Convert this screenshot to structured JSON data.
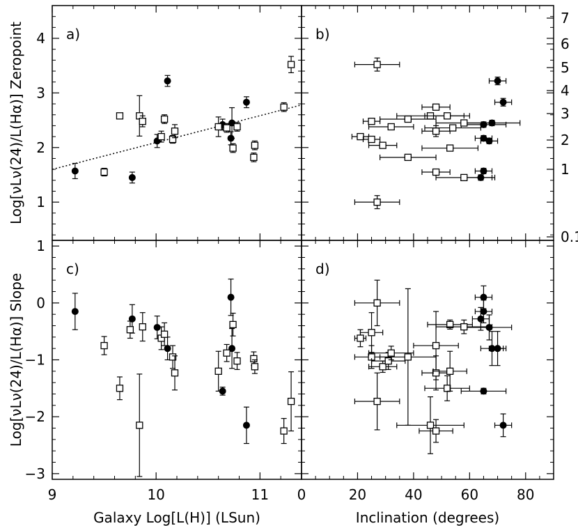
{
  "chart_data": [
    {
      "panel": "a",
      "panel_label": "a)",
      "type": "scatter",
      "ylabel": "Log[νLν(24)/L(Hα)] Zeropoint",
      "xlabel": "Galaxy Log[L(H)] (LSun)",
      "xlim": [
        9.0,
        11.4
      ],
      "ylim": [
        0.3,
        4.6
      ],
      "xticks": [
        "9",
        "10",
        "11"
      ],
      "yticks": [
        "1",
        "2",
        "3",
        "4"
      ],
      "fit_line": {
        "x": [
          9.0,
          11.4
        ],
        "y": [
          1.6,
          2.78
        ],
        "style": "dotted"
      },
      "series": [
        {
          "name": "filled",
          "marker": "filled-circle",
          "points": [
            {
              "x": 9.22,
              "y": 1.57,
              "yerr": 0.14
            },
            {
              "x": 9.77,
              "y": 1.45,
              "yerr": 0.1
            },
            {
              "x": 10.01,
              "y": 2.12,
              "yerr": 0.12
            },
            {
              "x": 10.11,
              "y": 3.22,
              "yerr": 0.1
            },
            {
              "x": 10.64,
              "y": 2.42,
              "yerr": 0.1
            },
            {
              "x": 10.72,
              "y": 2.17,
              "yerr": 0.12
            },
            {
              "x": 10.73,
              "y": 2.45,
              "yerr": 0.28
            },
            {
              "x": 10.87,
              "y": 2.83,
              "yerr": 0.1
            }
          ]
        },
        {
          "name": "open",
          "marker": "open-square",
          "points": [
            {
              "x": 9.5,
              "y": 1.55,
              "yerr": 0.07
            },
            {
              "x": 9.65,
              "y": 2.58,
              "yerr": 0.05
            },
            {
              "x": 9.84,
              "y": 2.58,
              "yerr": 0.37
            },
            {
              "x": 9.87,
              "y": 2.48,
              "yerr": 0.1
            },
            {
              "x": 10.05,
              "y": 2.2,
              "yerr": 0.1
            },
            {
              "x": 10.08,
              "y": 2.52,
              "yerr": 0.08
            },
            {
              "x": 10.16,
              "y": 2.15,
              "yerr": 0.07
            },
            {
              "x": 10.18,
              "y": 2.3,
              "yerr": 0.12
            },
            {
              "x": 10.6,
              "y": 2.38,
              "yerr": 0.18
            },
            {
              "x": 10.68,
              "y": 2.36,
              "yerr": 0.08
            },
            {
              "x": 10.74,
              "y": 1.99,
              "yerr": 0.08
            },
            {
              "x": 10.78,
              "y": 2.38,
              "yerr": 0.08
            },
            {
              "x": 10.94,
              "y": 1.82,
              "yerr": 0.08
            },
            {
              "x": 10.95,
              "y": 2.04,
              "yerr": 0.08
            },
            {
              "x": 11.23,
              "y": 2.74,
              "yerr": 0.08
            },
            {
              "x": 11.3,
              "y": 3.52,
              "yerr": 0.15
            }
          ]
        }
      ]
    },
    {
      "panel": "b",
      "panel_label": "b)",
      "type": "scatter",
      "xlabel": "Inclination (degrees)",
      "xlim": [
        0,
        90
      ],
      "ylim": [
        0.3,
        4.6
      ],
      "xticks": [
        "0",
        "20",
        "40",
        "60",
        "80"
      ],
      "right_axis_ticks": [
        "7",
        "6",
        "5",
        "4",
        "3",
        "2",
        "1",
        "0.1"
      ],
      "series": [
        {
          "name": "filled",
          "marker": "filled-circle",
          "points": [
            {
              "x": 64,
              "y": 1.45,
              "xerr": 5,
              "yerr": 0.05
            },
            {
              "x": 65,
              "y": 1.57,
              "xerr": 3,
              "yerr": 0.05
            },
            {
              "x": 65,
              "y": 2.42,
              "xerr": 8,
              "yerr": 0.05
            },
            {
              "x": 65,
              "y": 2.17,
              "xerr": 3,
              "yerr": 0.05
            },
            {
              "x": 67,
              "y": 2.12,
              "xerr": 3,
              "yerr": 0.05
            },
            {
              "x": 68,
              "y": 2.45,
              "xerr": 10,
              "yerr": 0.05
            },
            {
              "x": 70,
              "y": 3.22,
              "xerr": 3,
              "yerr": 0.07
            },
            {
              "x": 72,
              "y": 2.83,
              "xerr": 3,
              "yerr": 0.07
            }
          ]
        },
        {
          "name": "open",
          "marker": "open-square",
          "points": [
            {
              "x": 21,
              "y": 2.2,
              "xerr": 3,
              "yerr": 0.05
            },
            {
              "x": 25,
              "y": 2.48,
              "xerr": 3,
              "yerr": 0.05
            },
            {
              "x": 25,
              "y": 2.15,
              "xerr": 3,
              "yerr": 0.05
            },
            {
              "x": 27,
              "y": 3.52,
              "xerr": 8,
              "yerr": 0.12
            },
            {
              "x": 27,
              "y": 1.0,
              "xerr": 8,
              "yerr": 0.12
            },
            {
              "x": 29,
              "y": 2.04,
              "xerr": 5,
              "yerr": 0.05
            },
            {
              "x": 32,
              "y": 2.38,
              "xerr": 8,
              "yerr": 0.05
            },
            {
              "x": 38,
              "y": 1.82,
              "xerr": 10,
              "yerr": 0.05
            },
            {
              "x": 38,
              "y": 2.52,
              "xerr": 10,
              "yerr": 0.05
            },
            {
              "x": 46,
              "y": 2.58,
              "xerr": 12,
              "yerr": 0.05
            },
            {
              "x": 48,
              "y": 2.74,
              "xerr": 5,
              "yerr": 0.05
            },
            {
              "x": 48,
              "y": 2.3,
              "xerr": 5,
              "yerr": 0.1
            },
            {
              "x": 48,
              "y": 1.55,
              "xerr": 5,
              "yerr": 0.05
            },
            {
              "x": 52,
              "y": 2.58,
              "xerr": 8,
              "yerr": 0.05
            },
            {
              "x": 53,
              "y": 1.99,
              "xerr": 10,
              "yerr": 0.05
            },
            {
              "x": 54,
              "y": 2.36,
              "xerr": 10,
              "yerr": 0.05
            },
            {
              "x": 58,
              "y": 2.45,
              "xerr": 10,
              "yerr": 0.05
            },
            {
              "x": 58,
              "y": 1.45,
              "xerr": 10,
              "yerr": 0.05
            }
          ]
        }
      ]
    },
    {
      "panel": "c",
      "panel_label": "c)",
      "type": "scatter",
      "ylabel": "Log[νLν(24)/L(Hα)] Slope",
      "xlabel": "Galaxy Log[L(H)] (LSun)",
      "xlim": [
        9.0,
        11.4
      ],
      "ylim": [
        -3.1,
        1.1
      ],
      "xticks": [
        "9",
        "10",
        "11"
      ],
      "yticks": [
        "1",
        "0",
        "−1",
        "−2",
        "−3"
      ],
      "series": [
        {
          "name": "filled",
          "marker": "filled-circle",
          "points": [
            {
              "x": 9.22,
              "y": -0.15,
              "yerr": 0.32
            },
            {
              "x": 9.77,
              "y": -0.28,
              "yerr": 0.25
            },
            {
              "x": 10.01,
              "y": -0.43,
              "yerr": 0.2
            },
            {
              "x": 10.11,
              "y": -0.8,
              "yerr": 0.2
            },
            {
              "x": 10.64,
              "y": -1.55,
              "yerr": 0.07
            },
            {
              "x": 10.72,
              "y": 0.1,
              "yerr": 0.32
            },
            {
              "x": 10.73,
              "y": -0.8,
              "yerr": 0.35
            },
            {
              "x": 10.87,
              "y": -2.15,
              "yerr": 0.32
            }
          ]
        },
        {
          "name": "open",
          "marker": "open-square",
          "points": [
            {
              "x": 9.5,
              "y": -0.75,
              "yerr": 0.16
            },
            {
              "x": 9.65,
              "y": -1.5,
              "yerr": 0.2
            },
            {
              "x": 9.75,
              "y": -0.47,
              "yerr": 0.15
            },
            {
              "x": 9.84,
              "y": -2.15,
              "yerr": 0.9
            },
            {
              "x": 9.87,
              "y": -0.42,
              "yerr": 0.25
            },
            {
              "x": 10.05,
              "y": -0.62,
              "yerr": 0.2
            },
            {
              "x": 10.08,
              "y": -0.55,
              "yerr": 0.2
            },
            {
              "x": 10.16,
              "y": -0.95,
              "yerr": 0.2
            },
            {
              "x": 10.18,
              "y": -1.23,
              "yerr": 0.3
            },
            {
              "x": 10.6,
              "y": -1.2,
              "yerr": 0.35
            },
            {
              "x": 10.68,
              "y": -0.88,
              "yerr": 0.15
            },
            {
              "x": 10.74,
              "y": -0.38,
              "yerr": 0.2
            },
            {
              "x": 10.78,
              "y": -1.02,
              "yerr": 0.15
            },
            {
              "x": 10.94,
              "y": -0.98,
              "yerr": 0.12
            },
            {
              "x": 10.95,
              "y": -1.12,
              "yerr": 0.12
            },
            {
              "x": 11.23,
              "y": -2.25,
              "yerr": 0.22
            },
            {
              "x": 11.3,
              "y": -1.73,
              "yerr": 0.52
            }
          ]
        }
      ]
    },
    {
      "panel": "d",
      "panel_label": "d)",
      "type": "scatter",
      "xlabel": "Inclination (degrees)",
      "xlim": [
        0,
        90
      ],
      "ylim": [
        -3.1,
        1.1
      ],
      "xticks": [
        "0",
        "20",
        "40",
        "60",
        "80"
      ],
      "series": [
        {
          "name": "filled",
          "marker": "filled-circle",
          "points": [
            {
              "x": 64,
              "y": -0.28,
              "xerr": 3,
              "yerr": 0.2
            },
            {
              "x": 65,
              "y": 0.1,
              "xerr": 3,
              "yerr": 0.2
            },
            {
              "x": 65,
              "y": -0.15,
              "xerr": 3,
              "yerr": 0.2
            },
            {
              "x": 65,
              "y": -1.55,
              "xerr": 8,
              "yerr": 0.05
            },
            {
              "x": 67,
              "y": -0.43,
              "xerr": 8,
              "yerr": 0.22
            },
            {
              "x": 68,
              "y": -0.8,
              "xerr": 4,
              "yerr": 0.3
            },
            {
              "x": 70,
              "y": -0.8,
              "xerr": 3,
              "yerr": 0.3
            },
            {
              "x": 72,
              "y": -2.15,
              "xerr": 3,
              "yerr": 0.2
            }
          ]
        },
        {
          "name": "open",
          "marker": "open-square",
          "points": [
            {
              "x": 21,
              "y": -0.62,
              "xerr": 2,
              "yerr": 0.15
            },
            {
              "x": 25,
              "y": -0.52,
              "xerr": 4,
              "yerr": 0.35
            },
            {
              "x": 25,
              "y": -0.95,
              "xerr": 6,
              "yerr": 0.2
            },
            {
              "x": 27,
              "y": 0.0,
              "xerr": 8,
              "yerr": 0.4
            },
            {
              "x": 27,
              "y": -1.73,
              "xerr": 8,
              "yerr": 0.5
            },
            {
              "x": 29,
              "y": -1.12,
              "xerr": 5,
              "yerr": 0.1
            },
            {
              "x": 31,
              "y": -1.02,
              "xerr": 6,
              "yerr": 0.15
            },
            {
              "x": 32,
              "y": -0.88,
              "xerr": 8,
              "yerr": 0.12
            },
            {
              "x": 38,
              "y": -0.95,
              "xerr": 10,
              "yerr": 1.2
            },
            {
              "x": 46,
              "y": -2.15,
              "xerr": 12,
              "yerr": 0.5
            },
            {
              "x": 48,
              "y": -0.75,
              "xerr": 8,
              "yerr": 0.6
            },
            {
              "x": 48,
              "y": -1.23,
              "xerr": 5,
              "yerr": 0.3
            },
            {
              "x": 48,
              "y": -2.25,
              "xerr": 6,
              "yerr": 0.2
            },
            {
              "x": 52,
              "y": -1.5,
              "xerr": 8,
              "yerr": 0.22
            },
            {
              "x": 53,
              "y": -1.2,
              "xerr": 6,
              "yerr": 0.35
            },
            {
              "x": 53,
              "y": -0.38,
              "xerr": 8,
              "yerr": 0.08
            },
            {
              "x": 58,
              "y": -0.42,
              "xerr": 10,
              "yerr": 0.12
            }
          ]
        }
      ]
    }
  ]
}
